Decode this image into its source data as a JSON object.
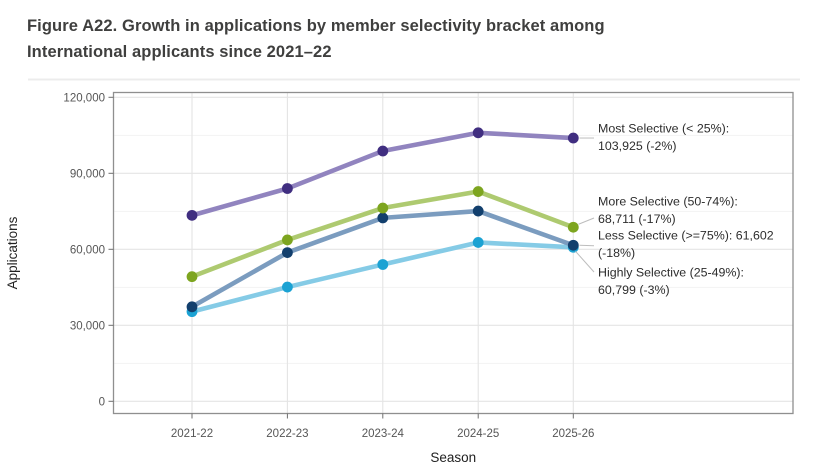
{
  "title": {
    "line1": "Figure A22. Growth in applications by member selectivity bracket among",
    "line2": "International applicants since 2021–22"
  },
  "chart_data": {
    "type": "line",
    "xlabel": "Season",
    "ylabel": "Applications",
    "categories": [
      "2021-22",
      "2022-23",
      "2023-24",
      "2024-25",
      "2025-26"
    ],
    "y_ticks": [
      0,
      30000,
      60000,
      90000,
      120000
    ],
    "y_tick_labels": [
      "0",
      "30,000",
      "60,000",
      "90,000",
      "120,000"
    ],
    "y_minor_ticks": [
      15000,
      45000,
      75000,
      105000
    ],
    "ylim": [
      -4800,
      121900
    ],
    "grid": "horizontal major+minor, vertical major; light gray on white panel",
    "legend_position": "right-side annotations with leader lines",
    "series": [
      {
        "name": "Most Selective (< 25%)",
        "values": [
          73400,
          84000,
          98800,
          106000,
          103925
        ],
        "final_value_label": "103,925",
        "change_label": "-2%",
        "annotation_lines": [
          "Most Selective (< 25%):",
          "103,925 (-2%)"
        ],
        "line_color": "#9184bf",
        "point_color": "#402e80"
      },
      {
        "name": "More Selective (50-74%)",
        "values": [
          49200,
          63700,
          76300,
          82800,
          68711
        ],
        "final_value_label": "68,711",
        "change_label": "-17%",
        "annotation_lines": [
          "More Selective (50-74%):",
          "68,711 (-17%)"
        ],
        "line_color": "#aeca70",
        "point_color": "#7da51f"
      },
      {
        "name": "Less Selective (>=75%)",
        "values": [
          37300,
          58700,
          72400,
          75100,
          61602
        ],
        "final_value_label": "61,602",
        "change_label": "-18%",
        "annotation_lines": [
          "Less Selective (>=75%): 61,602",
          "(-18%)"
        ],
        "line_color": "#7b9cbf",
        "point_color": "#123f6d"
      },
      {
        "name": "Highly Selective (25-49%)",
        "values": [
          35400,
          45100,
          54000,
          62700,
          60799
        ],
        "final_value_label": "60,799",
        "change_label": "-3%",
        "annotation_lines": [
          "Highly Selective (25-49%):",
          "60,799 (-3%)"
        ],
        "line_color": "#85cbe6",
        "point_color": "#1ba2d3"
      }
    ]
  }
}
